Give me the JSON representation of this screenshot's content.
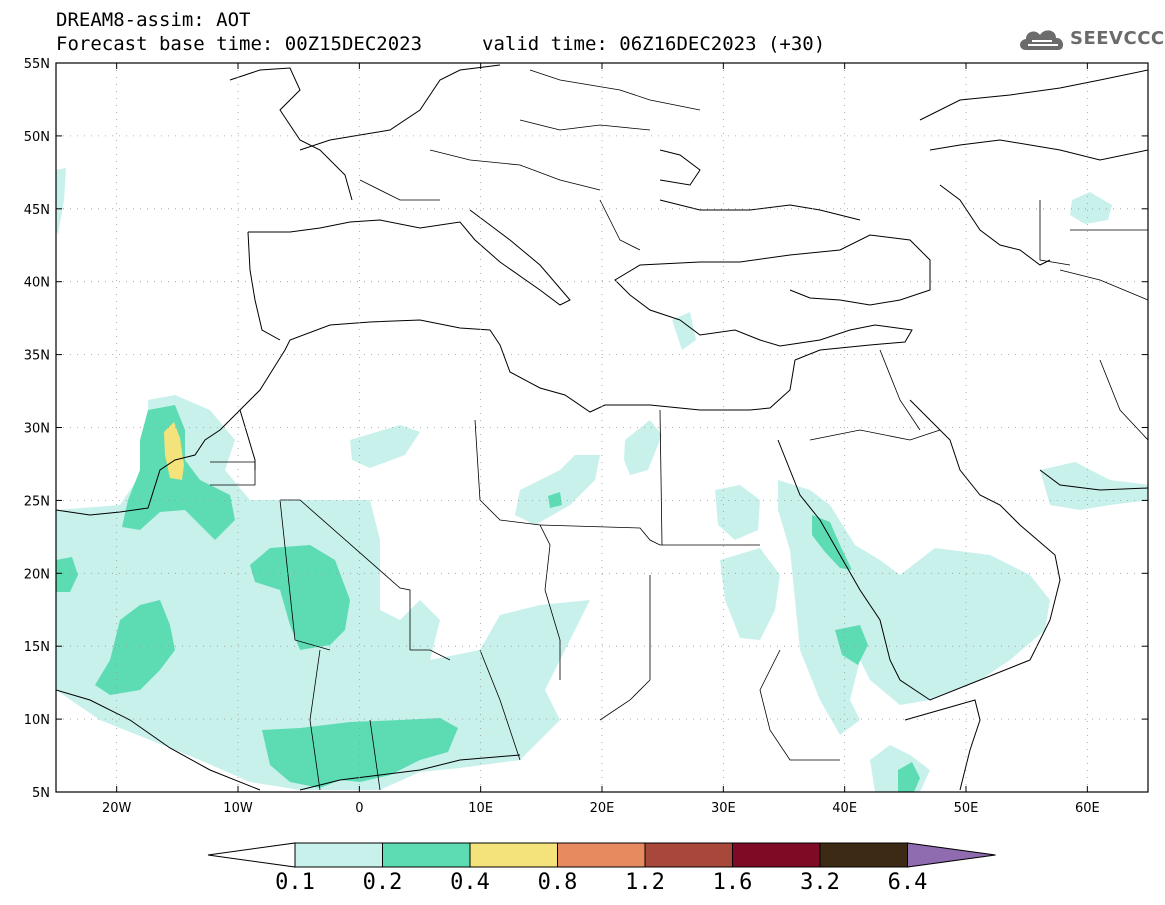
{
  "header": {
    "title": "DREAM8-assim: AOT",
    "base_time": "Forecast base time: 00Z15DEC2023",
    "valid_time": "valid time: 06Z16DEC2023 (+30)"
  },
  "logo": {
    "text": "SEEVCCC",
    "icon": "cloud-icon"
  },
  "map": {
    "lat_labels": [
      "55N",
      "50N",
      "45N",
      "40N",
      "35N",
      "30N",
      "25N",
      "20N",
      "15N",
      "10N",
      "5N"
    ],
    "lon_labels": [
      "20W",
      "10W",
      "0",
      "10E",
      "20E",
      "30E",
      "40E",
      "50E",
      "60E"
    ]
  },
  "legend": {
    "levels": [
      "0.1",
      "0.2",
      "0.4",
      "0.8",
      "1.2",
      "1.6",
      "3.2",
      "6.4"
    ],
    "colors": [
      "#ffffff",
      "#c8f1ec",
      "#5ddcb4",
      "#f4e37a",
      "#e88a60",
      "#a7483a",
      "#7f0a26",
      "#3c2a15",
      "#8f6bb0"
    ]
  }
}
